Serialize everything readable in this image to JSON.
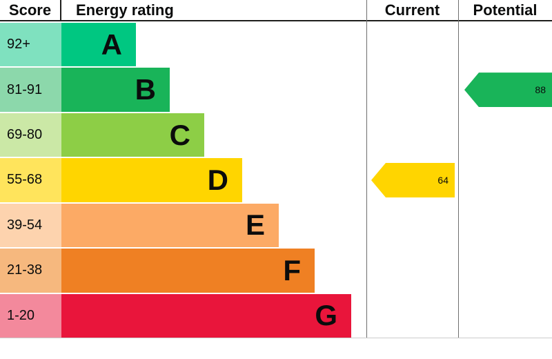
{
  "header": {
    "score": "Score",
    "rating": "Energy rating",
    "current": "Current",
    "potential": "Potential"
  },
  "chart_data": {
    "type": "bar",
    "title": "Energy rating",
    "orientation": "horizontal",
    "columns": [
      "Score",
      "Energy rating",
      "Current",
      "Potential"
    ],
    "value_range": [
      1,
      100
    ],
    "bands": [
      {
        "letter": "A",
        "score_range": "92+",
        "color": "#00c781",
        "tint": "#7fe1bf",
        "width_pct": 24.4
      },
      {
        "letter": "B",
        "score_range": "81-91",
        "color": "#19b459",
        "tint": "#8cd8ab",
        "width_pct": 35.5
      },
      {
        "letter": "C",
        "score_range": "69-80",
        "color": "#8dce46",
        "tint": "#cbe8a6",
        "width_pct": 46.8
      },
      {
        "letter": "D",
        "score_range": "55-68",
        "color": "#ffd500",
        "tint": "#ffe45c",
        "width_pct": 59.3
      },
      {
        "letter": "E",
        "score_range": "39-54",
        "color": "#fcaa65",
        "tint": "#fdd3ae",
        "width_pct": 71.3
      },
      {
        "letter": "F",
        "score_range": "21-38",
        "color": "#ef8023",
        "tint": "#f6b87e",
        "width_pct": 83.0
      },
      {
        "letter": "G",
        "score_range": "1-20",
        "color": "#e9153b",
        "tint": "#f3899c",
        "width_pct": 95.0
      }
    ],
    "current": {
      "value": 64,
      "band": "D"
    },
    "potential": {
      "value": 88,
      "band": "B"
    }
  }
}
